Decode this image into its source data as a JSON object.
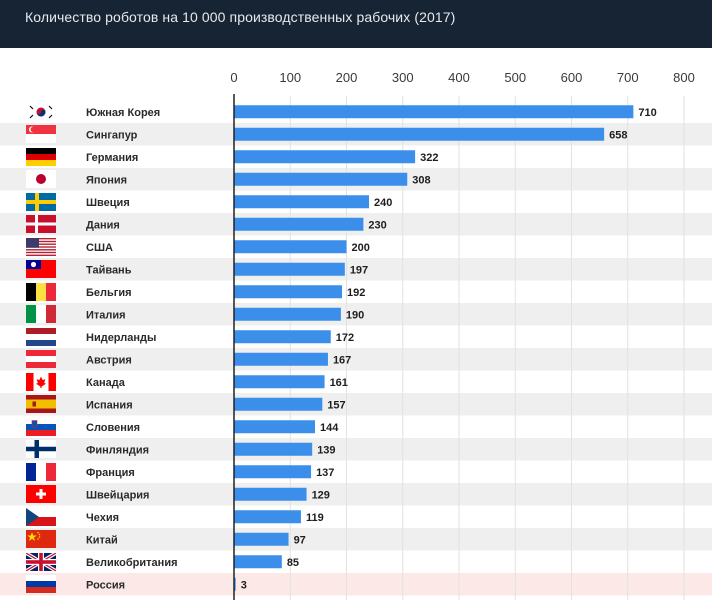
{
  "header": {
    "title": "Количество роботов на 10 000 производственных рабочих (2017)"
  },
  "colors": {
    "header_bg": "#172433",
    "bar": "#3b8fea",
    "row_stripe": "#efefef",
    "highlight_row": "#fde8e8"
  },
  "chart_data": {
    "type": "bar",
    "orientation": "horizontal",
    "title": "Количество роботов на 10 000 производственных рабочих (2017)",
    "xlim": [
      0,
      800
    ],
    "x_ticks": [
      0,
      100,
      200,
      300,
      400,
      500,
      600,
      700,
      800
    ],
    "grid": true,
    "highlighted_category": "Россия",
    "categories": [
      "Южная Корея",
      "Сингапур",
      "Германия",
      "Япония",
      "Швеция",
      "Дания",
      "США",
      "Тайвань",
      "Бельгия",
      "Италия",
      "Нидерланды",
      "Австрия",
      "Канада",
      "Испания",
      "Словения",
      "Финляндия",
      "Франция",
      "Швейцария",
      "Чехия",
      "Китай",
      "Великобритания",
      "Россия"
    ],
    "values": [
      710,
      658,
      322,
      308,
      240,
      230,
      200,
      197,
      192,
      190,
      172,
      167,
      161,
      157,
      144,
      139,
      137,
      129,
      119,
      97,
      85,
      3
    ],
    "flag_icons": [
      "flag-south-korea-icon",
      "flag-singapore-icon",
      "flag-germany-icon",
      "flag-japan-icon",
      "flag-sweden-icon",
      "flag-denmark-icon",
      "flag-usa-icon",
      "flag-taiwan-icon",
      "flag-belgium-icon",
      "flag-italy-icon",
      "flag-netherlands-icon",
      "flag-austria-icon",
      "flag-canada-icon",
      "flag-spain-icon",
      "flag-slovenia-icon",
      "flag-finland-icon",
      "flag-france-icon",
      "flag-switzerland-icon",
      "flag-czechia-icon",
      "flag-china-icon",
      "flag-uk-icon",
      "flag-russia-icon"
    ]
  }
}
